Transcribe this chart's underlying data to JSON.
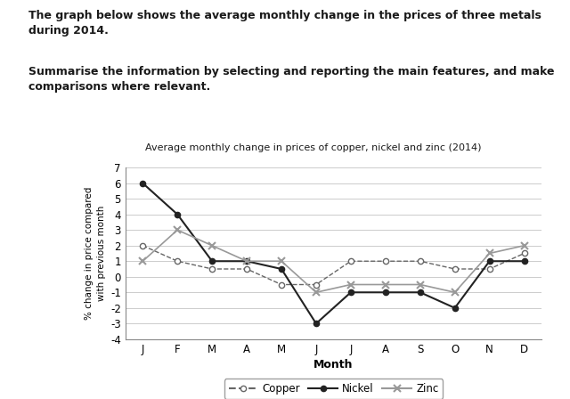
{
  "title": "Average monthly change in prices of copper, nickel and zinc (2014)",
  "xlabel": "Month",
  "ylabel": "% change in price compared\nwith previous month",
  "months": [
    "J",
    "F",
    "M",
    "A",
    "M",
    "J",
    "J",
    "A",
    "S",
    "O",
    "N",
    "D"
  ],
  "copper": [
    2,
    1,
    0.5,
    0.5,
    -0.5,
    -0.5,
    1,
    1,
    1,
    0.5,
    0.5,
    1.5
  ],
  "nickel": [
    6,
    4,
    1,
    1,
    0.5,
    -3,
    -1,
    -1,
    -1,
    -2,
    1,
    1
  ],
  "zinc": [
    1,
    3,
    2,
    1,
    1,
    -1,
    -0.5,
    -0.5,
    -0.5,
    -1,
    1.5,
    2
  ],
  "ylim": [
    -4,
    7
  ],
  "yticks": [
    -4,
    -3,
    -2,
    -1,
    0,
    1,
    2,
    3,
    4,
    5,
    6,
    7
  ],
  "header_text1": "The graph below shows the average monthly change in the prices of three metals\nduring 2014.",
  "header_text2": "Summarise the information by selecting and reporting the main features, and make\ncomparisons where relevant.",
  "bg_color": "#ffffff",
  "plot_bg": "#ffffff",
  "text_color": "#1a1a1a",
  "line_color_copper": "#666666",
  "line_color_nickel": "#222222",
  "line_color_zinc": "#999999"
}
